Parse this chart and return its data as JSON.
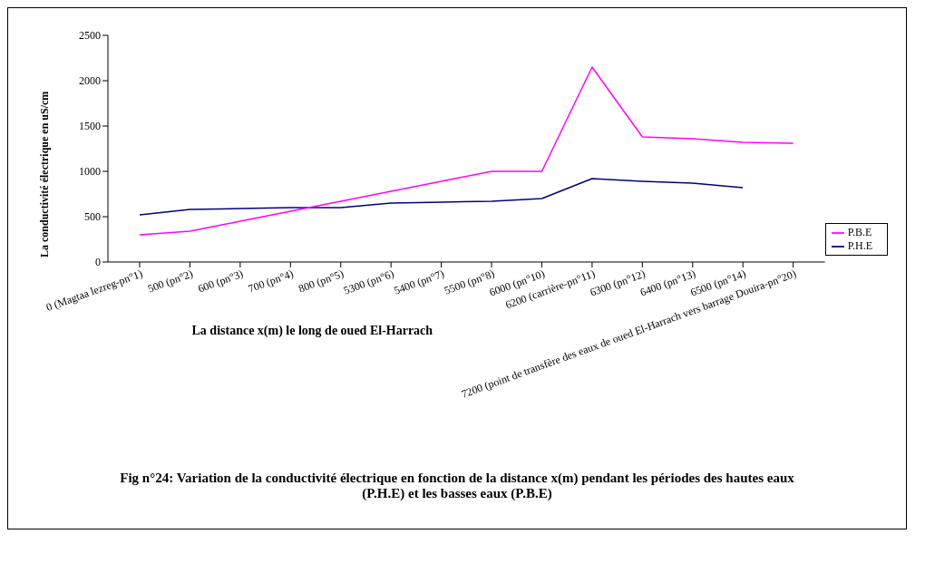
{
  "chart_data": {
    "type": "line",
    "title": "Fig n°24: Variation de la conductivité électrique en fonction de la distance x(m) pendant les périodes des hautes eaux (P.H.E) et les basses eaux (P.B.E)",
    "xlabel": "La distance x(m) le long de oued El-Harrach",
    "ylabel": "La conductivité électrique en uS/cm",
    "categories": [
      "0 (Magtaa lezreg-pn°1)",
      "500 (pn°2)",
      "600 (pn°3)",
      "700 (pn°4)",
      "800 (pn°5)",
      "5300 (pn°6)",
      "5400 (pn°7)",
      "5500 (pn°8)",
      "6000 (pn°10)",
      "6200 (carrière-pn°11)",
      "6300 (pn°12)",
      "6400 (pn°13)",
      "6500 (pn°14)",
      "7200 (point de transfère des eaux de oued El-Harrach vers barrage Douira-pn°20)"
    ],
    "series": [
      {
        "name": "P.H.E",
        "color": "#000080",
        "values": [
          520,
          580,
          590,
          600,
          600,
          650,
          660,
          670,
          700,
          920,
          890,
          870,
          820,
          null
        ]
      },
      {
        "name": "P.B.E",
        "color": "#ff00ff",
        "values": [
          300,
          340,
          450,
          560,
          670,
          780,
          890,
          1000,
          1000,
          2150,
          1380,
          1360,
          1320,
          1310
        ]
      }
    ],
    "ylim": [
      0,
      2500
    ],
    "yticks": [
      0,
      500,
      1000,
      1500,
      2000,
      2500
    ],
    "grid": false,
    "legend": "right",
    "marker": "none",
    "line_style": "solid"
  }
}
